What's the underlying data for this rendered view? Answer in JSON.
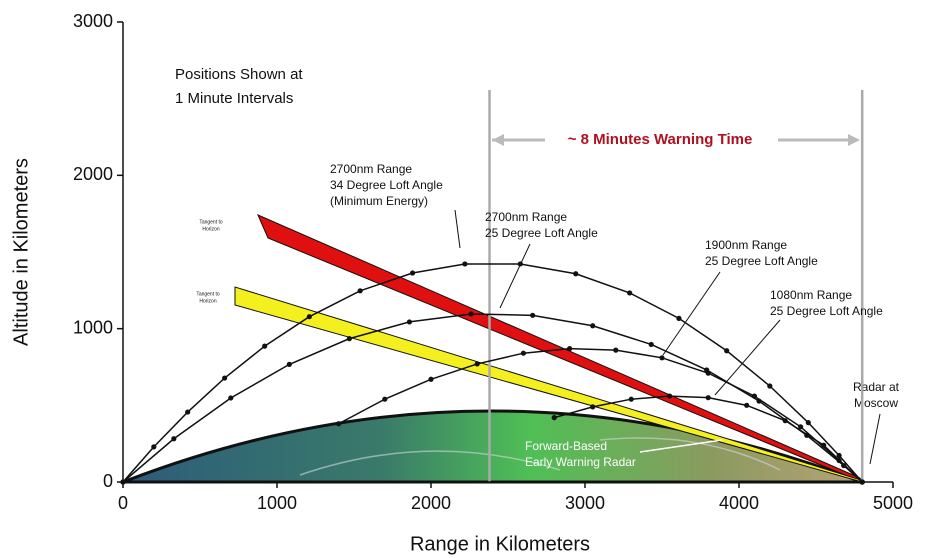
{
  "chart_data": {
    "type": "line",
    "xlabel": "Range in Kilometers",
    "ylabel": "Altitude in Kilometers",
    "xlim": [
      0,
      5000
    ],
    "xticks": [
      0,
      1000,
      2000,
      3000,
      4000,
      5000
    ],
    "ylim": [
      0,
      3000
    ],
    "yticks": [
      0,
      1000,
      2000,
      3000
    ],
    "grid": false,
    "color": "#111111",
    "series": [
      {
        "name": [
          "2700nm Range",
          "34 Degree Loft Angle",
          "(Minimum Energy)"
        ],
        "x": [
          0,
          200,
          420,
          660,
          920,
          1210,
          1540,
          1880,
          2220,
          2580,
          2940,
          3290,
          3610,
          3920,
          4200,
          4450,
          4650,
          4800
        ],
        "values": [
          0,
          229,
          456,
          678,
          886,
          1078,
          1247,
          1363,
          1422,
          1422,
          1358,
          1233,
          1067,
          856,
          626,
          387,
          173,
          0
        ]
      },
      {
        "name": [
          "2700nm Range",
          "25 Degree Loft Angle"
        ],
        "x": [
          0,
          330,
          700,
          1080,
          1470,
          1860,
          2260,
          2660,
          3050,
          3430,
          3790,
          4130,
          4440,
          4680,
          4800
        ],
        "values": [
          0,
          282,
          548,
          767,
          935,
          1044,
          1096,
          1087,
          1019,
          897,
          731,
          528,
          305,
          107,
          0
        ]
      },
      {
        "name": [
          "1900nm Range",
          "25 Degree Loft Angle"
        ],
        "x": [
          1400,
          1700,
          2000,
          2300,
          2600,
          2900,
          3200,
          3500,
          3800,
          4100,
          4400,
          4650,
          4800
        ],
        "values": [
          380,
          540,
          670,
          770,
          840,
          870,
          860,
          810,
          710,
          560,
          360,
          140,
          0
        ]
      },
      {
        "name": [
          "1080nm Range",
          "25 Degree Loft Angle"
        ],
        "x": [
          2800,
          3050,
          3300,
          3550,
          3800,
          4050,
          4300,
          4550,
          4800
        ],
        "values": [
          420,
          490,
          540,
          560,
          550,
          500,
          400,
          240,
          0
        ]
      }
    ],
    "annotations": {
      "intervals": [
        "Positions Shown at",
        "1 Minute Intervals"
      ],
      "warning": "~ 8 Minutes Warning Time",
      "warning_span": [
        2380,
        4800
      ],
      "tangent": [
        "Tangent to",
        "Horizon"
      ],
      "forward_radar": [
        "Forward-Based",
        "Early Warning Radar"
      ],
      "moscow_radar": [
        "Radar at",
        "Moscow"
      ]
    }
  }
}
